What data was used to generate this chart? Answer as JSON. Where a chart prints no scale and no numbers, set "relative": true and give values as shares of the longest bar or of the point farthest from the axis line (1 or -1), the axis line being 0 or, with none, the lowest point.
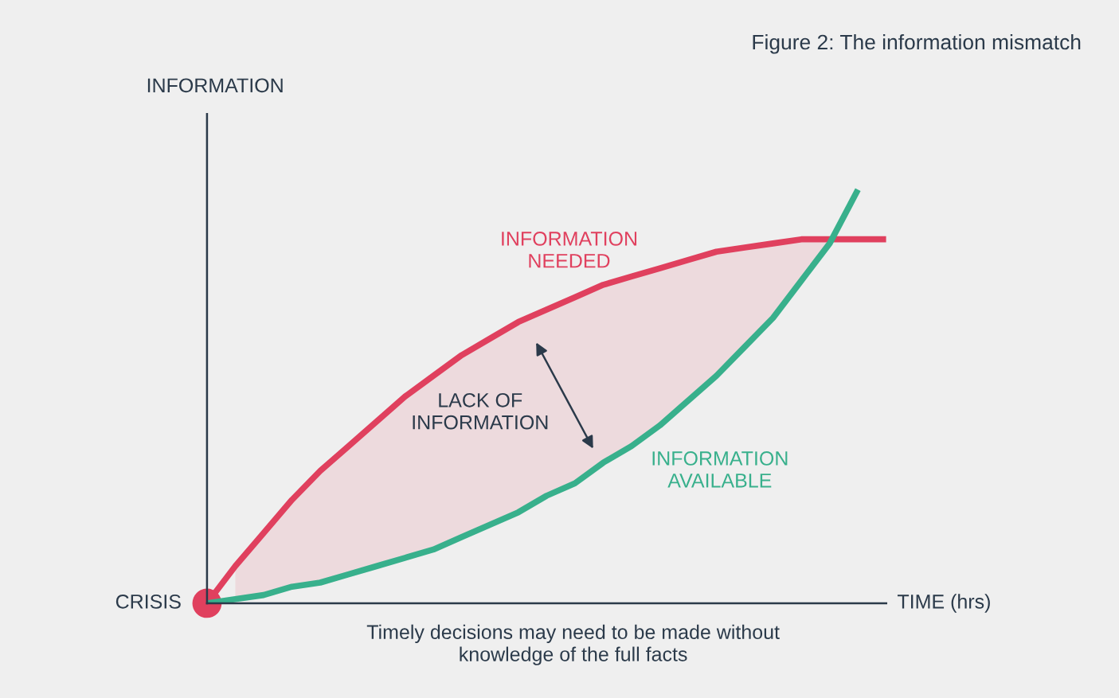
{
  "chart_data": {
    "type": "line",
    "relative": true,
    "title": "Figure 2: The information mismatch",
    "xlabel": "TIME (hrs)",
    "ylabel": "INFORMATION",
    "categories": [
      null,
      null,
      null,
      null,
      null,
      null,
      null,
      null,
      null,
      null,
      null,
      null,
      null,
      null,
      null,
      null,
      null,
      null,
      null,
      null,
      null,
      null,
      null,
      null,
      null
    ],
    "series": [
      {
        "name": "INFORMATION\nNEEDED",
        "color": "#e0405e",
        "values": [
          0,
          0.09,
          0.17,
          0.25,
          0.32,
          0.38,
          0.44,
          0.5,
          0.55,
          0.6,
          0.64,
          0.68,
          0.71,
          0.74,
          0.77,
          0.79,
          0.81,
          0.83,
          0.85,
          0.86,
          0.87,
          0.88,
          0.88,
          0.88,
          0.88
        ],
        "lower": [
          null,
          0.01,
          0.02,
          0.04,
          0.05,
          0.07,
          0.09,
          0.11,
          0.13,
          0.16,
          0.19,
          0.22,
          0.26,
          0.29,
          0.34,
          0.38,
          0.43,
          0.49,
          0.55,
          0.62,
          0.69,
          0.78,
          0.87,
          null,
          null
        ],
        "upper": [
          null,
          0.09,
          0.17,
          0.25,
          0.32,
          0.38,
          0.44,
          0.5,
          0.55,
          0.6,
          0.64,
          0.68,
          0.71,
          0.74,
          0.77,
          0.79,
          0.81,
          0.83,
          0.85,
          0.86,
          0.87,
          0.88,
          0.88,
          null,
          null
        ]
      },
      {
        "name": "INFORMATION\nAVAILABLE",
        "color": "#38b08c",
        "values": [
          0,
          0.01,
          0.02,
          0.04,
          0.05,
          0.07,
          0.09,
          0.11,
          0.13,
          0.16,
          0.19,
          0.22,
          0.26,
          0.29,
          0.34,
          0.38,
          0.43,
          0.49,
          0.55,
          0.62,
          0.69,
          0.78,
          0.87,
          1.0,
          null
        ]
      }
    ],
    "annotations": [
      "CRISIS",
      "LACK OF\nINFORMATION",
      "Timely decisions may need to be made without\nknowledge of the full facts"
    ],
    "grid": false
  }
}
